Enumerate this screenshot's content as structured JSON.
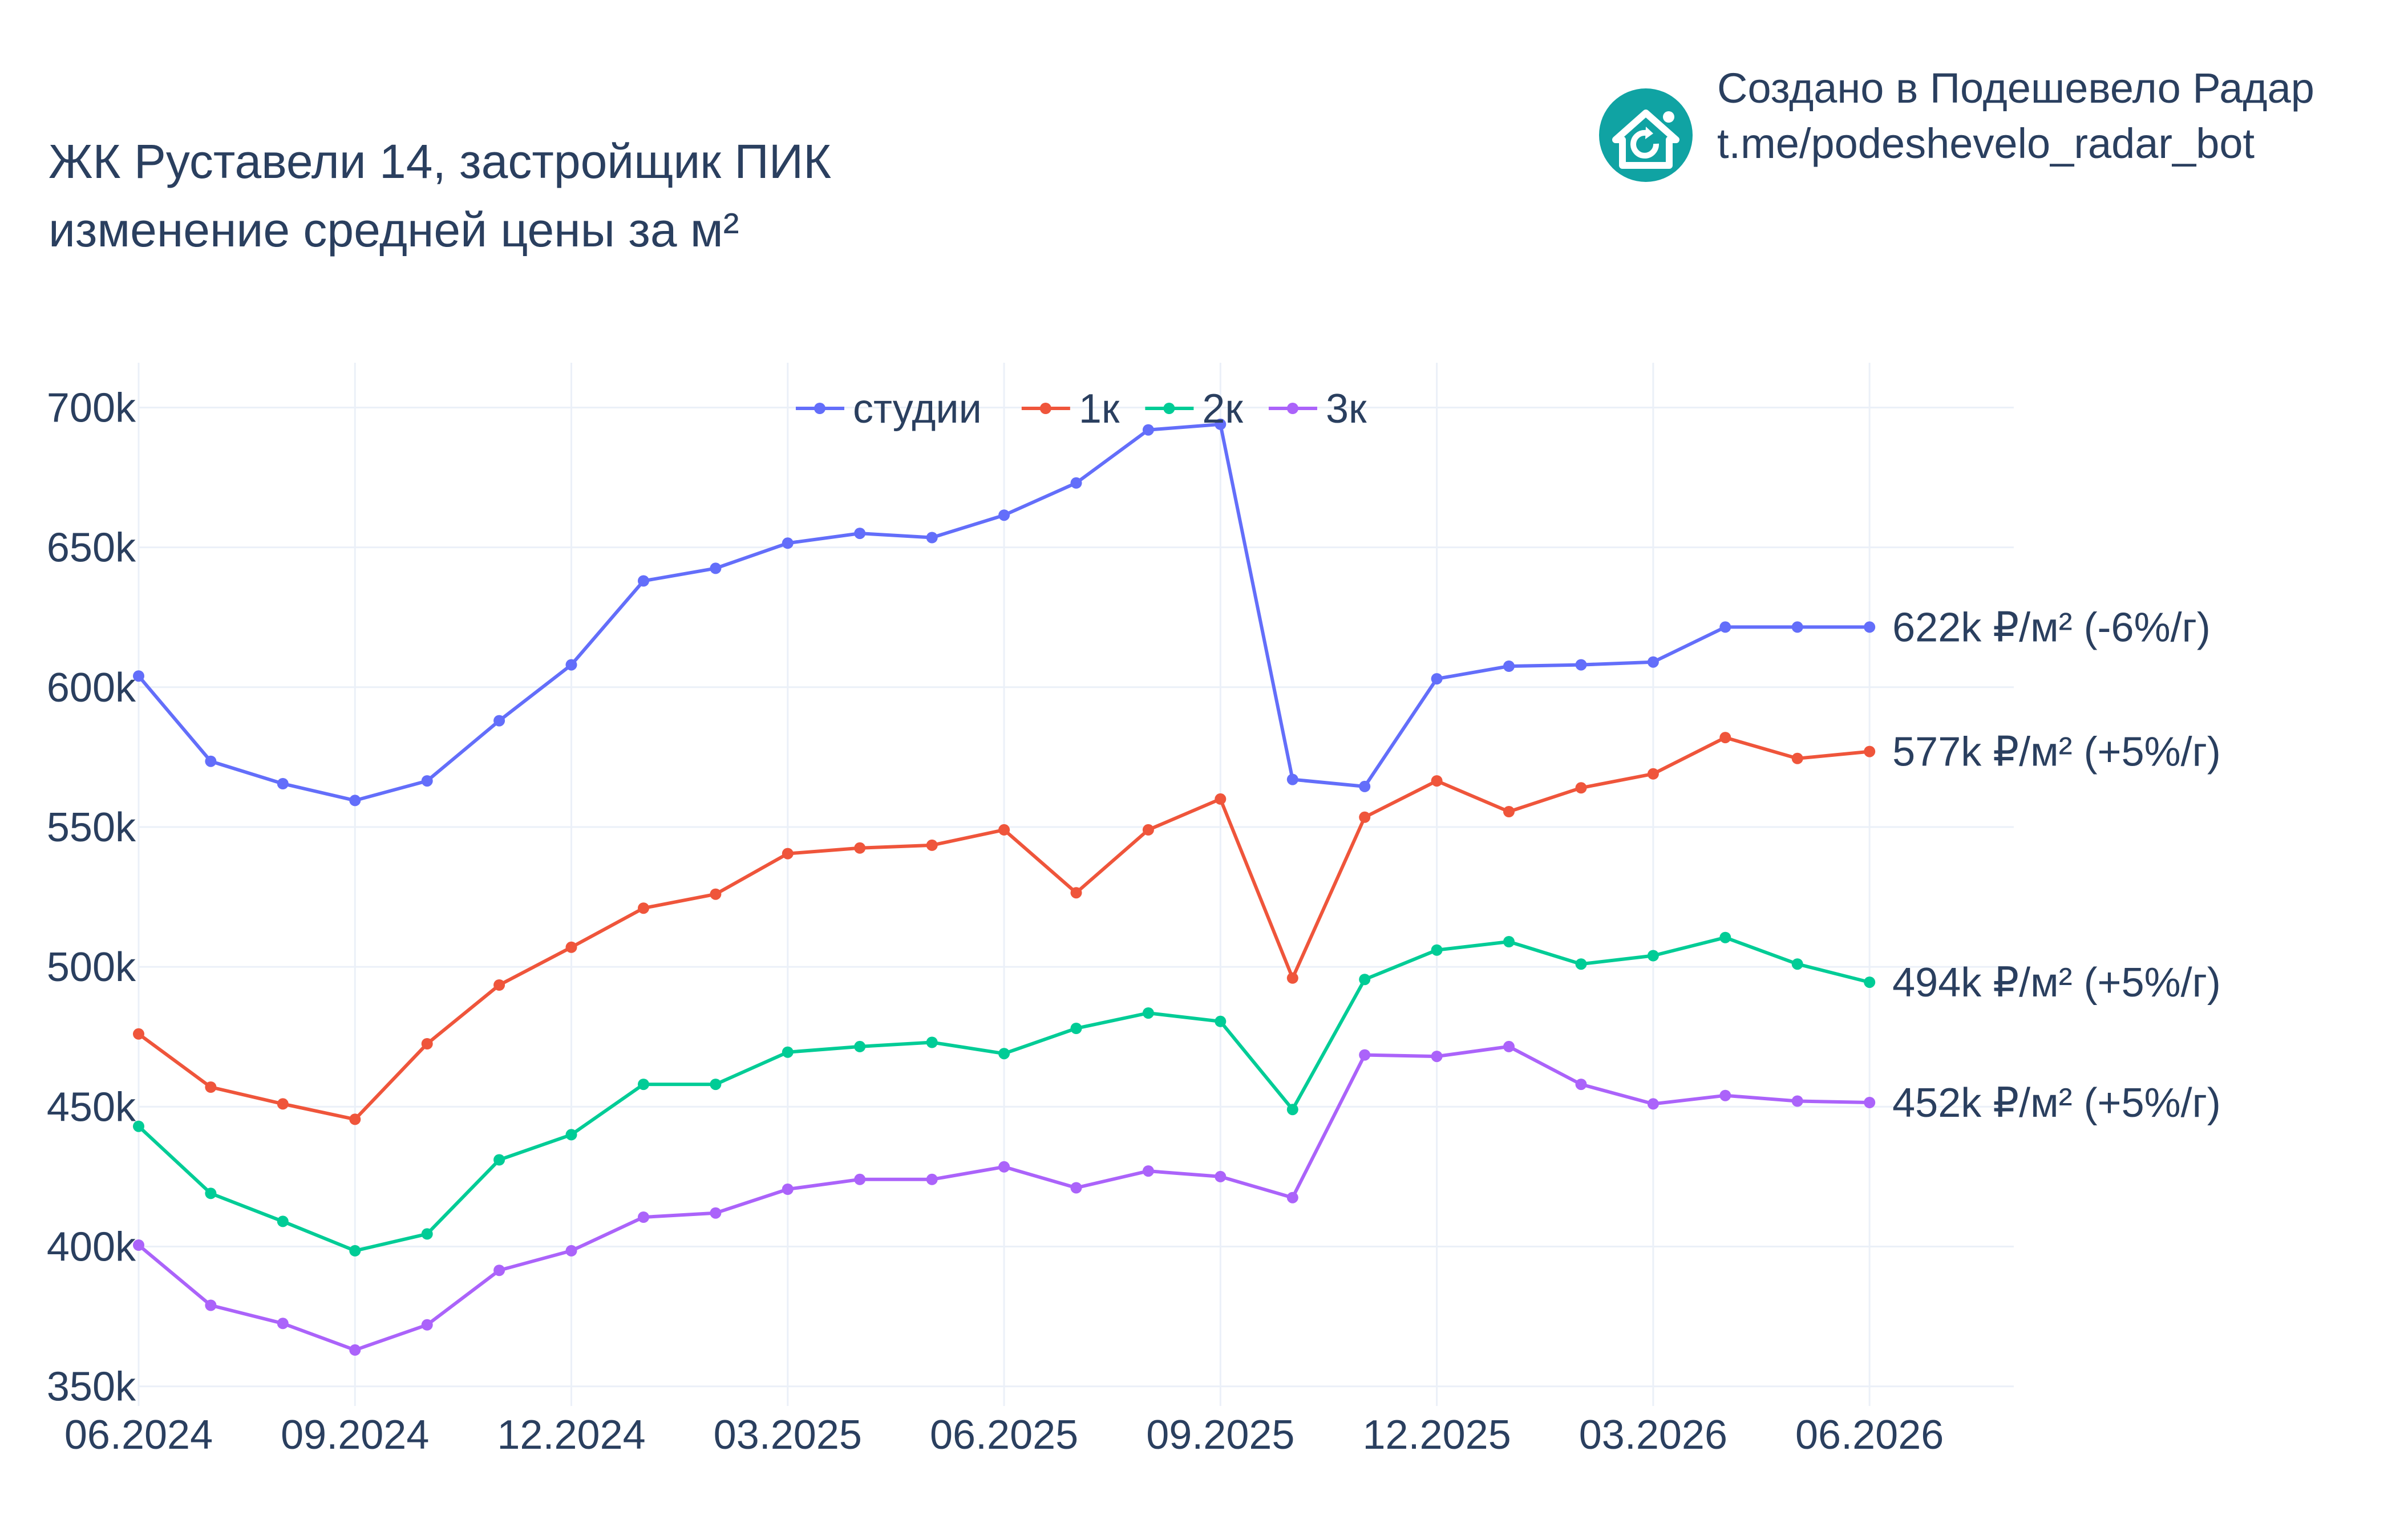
{
  "header": {
    "title_line1": "ЖК Руставели 14, застройщик ПИК",
    "title_line2": "изменение средней цены за м²"
  },
  "brand": {
    "line1": "Создано в Подешевело Радар",
    "line2": "t.me/podeshevelo_radar_bot",
    "logo_icon": "house-refresh-icon",
    "logo_color": "#10a3a3"
  },
  "chart_data": {
    "type": "line",
    "x": [
      "2024-06",
      "2024-07",
      "2024-08",
      "2024-09",
      "2024-10",
      "2024-11",
      "2024-12",
      "2025-01",
      "2025-02",
      "2025-03",
      "2025-04",
      "2025-05",
      "2025-06",
      "2025-07",
      "2025-08",
      "2025-09",
      "2025-10",
      "2025-11",
      "2025-12",
      "2026-01",
      "2026-02",
      "2026-03",
      "2026-04",
      "2026-05",
      "2026-06"
    ],
    "x_tick_labels": [
      "06.2024",
      "09.2024",
      "12.2024",
      "03.2025",
      "06.2025",
      "09.2025",
      "12.2025",
      "03.2026",
      "06.2026"
    ],
    "x_ticks": [
      "2024-06",
      "2024-09",
      "2024-12",
      "2025-03",
      "2025-06",
      "2025-09",
      "2025-12",
      "2026-03",
      "2026-06"
    ],
    "y_tick_labels": [
      "350k",
      "400k",
      "450k",
      "500k",
      "550k",
      "600k",
      "650k",
      "700k"
    ],
    "y_ticks": [
      350000,
      400000,
      450000,
      500000,
      550000,
      600000,
      650000,
      700000
    ],
    "xlim": [
      "2024-06",
      "2026-08"
    ],
    "ylim": [
      343000,
      716000
    ],
    "grid": true,
    "legend_position": "top-center",
    "series": [
      {
        "name": "студии",
        "color": "#636efa",
        "end_label": "622k ₽/м² (-6%/г)",
        "values": [
          604000,
          573500,
          565500,
          559500,
          566500,
          588000,
          608000,
          638000,
          642500,
          651500,
          655000,
          653500,
          661500,
          673000,
          692000,
          694000,
          567000,
          564500,
          603000,
          607500,
          608000,
          609000,
          621500,
          621500,
          621500
        ]
      },
      {
        "name": "1к",
        "color": "#ef553b",
        "end_label": "577k ₽/м² (+5%/г)",
        "values": [
          476000,
          457000,
          451000,
          445500,
          472500,
          493500,
          507000,
          521000,
          526000,
          540500,
          542500,
          543500,
          549000,
          526500,
          549000,
          560000,
          496000,
          553500,
          566500,
          555500,
          564000,
          569000,
          582000,
          574500,
          577000
        ]
      },
      {
        "name": "2к",
        "color": "#00cc96",
        "end_label": "494k ₽/м² (+5%/г)",
        "values": [
          443000,
          419000,
          409000,
          398500,
          404500,
          431000,
          440000,
          458000,
          458000,
          469500,
          471500,
          473000,
          469000,
          478000,
          483500,
          480500,
          449000,
          495500,
          506000,
          509000,
          501000,
          504000,
          510500,
          501000,
          494500
        ]
      },
      {
        "name": "3к",
        "color": "#ab63fa",
        "end_label": "452k ₽/м² (+5%/г)",
        "values": [
          400500,
          379000,
          372500,
          363000,
          372000,
          391500,
          398500,
          410500,
          412000,
          420500,
          424000,
          424000,
          428500,
          421000,
          427000,
          425000,
          417500,
          468500,
          468000,
          471500,
          458000,
          451000,
          454000,
          452000,
          451500
        ]
      }
    ]
  }
}
